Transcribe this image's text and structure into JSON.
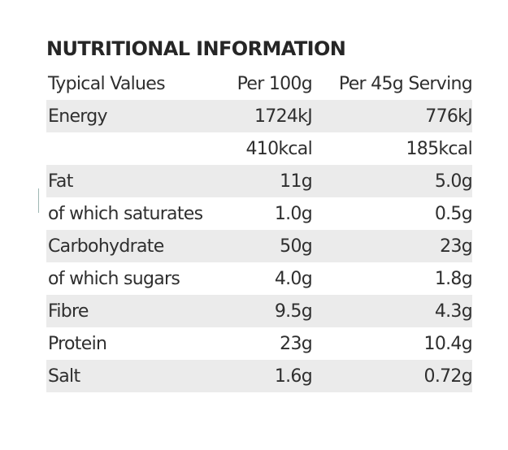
{
  "title": "NUTRITIONAL INFORMATION",
  "header": {
    "label": "Typical Values",
    "per100": "Per 100g",
    "perServing": "Per 45g Serving"
  },
  "rows": [
    {
      "label": "Energy",
      "per100": "1724kJ",
      "perServing": "776kJ"
    },
    {
      "label": "",
      "per100": "410kcal",
      "perServing": "185kcal"
    },
    {
      "label": "Fat",
      "per100": "11g",
      "perServing": "5.0g"
    },
    {
      "label": "of which saturates",
      "per100": "1.0g",
      "perServing": "0.5g"
    },
    {
      "label": "Carbohydrate",
      "per100": "50g",
      "perServing": "23g"
    },
    {
      "label": "of which sugars",
      "per100": "4.0g",
      "perServing": "1.8g"
    },
    {
      "label": "Fibre",
      "per100": "9.5g",
      "perServing": "4.3g"
    },
    {
      "label": "Protein",
      "per100": "23g",
      "perServing": "10.4g"
    },
    {
      "label": "Salt",
      "per100": "1.6g",
      "perServing": "0.72g"
    }
  ],
  "colors": {
    "shade": "#ebebeb",
    "text": "#2b2b2b"
  }
}
